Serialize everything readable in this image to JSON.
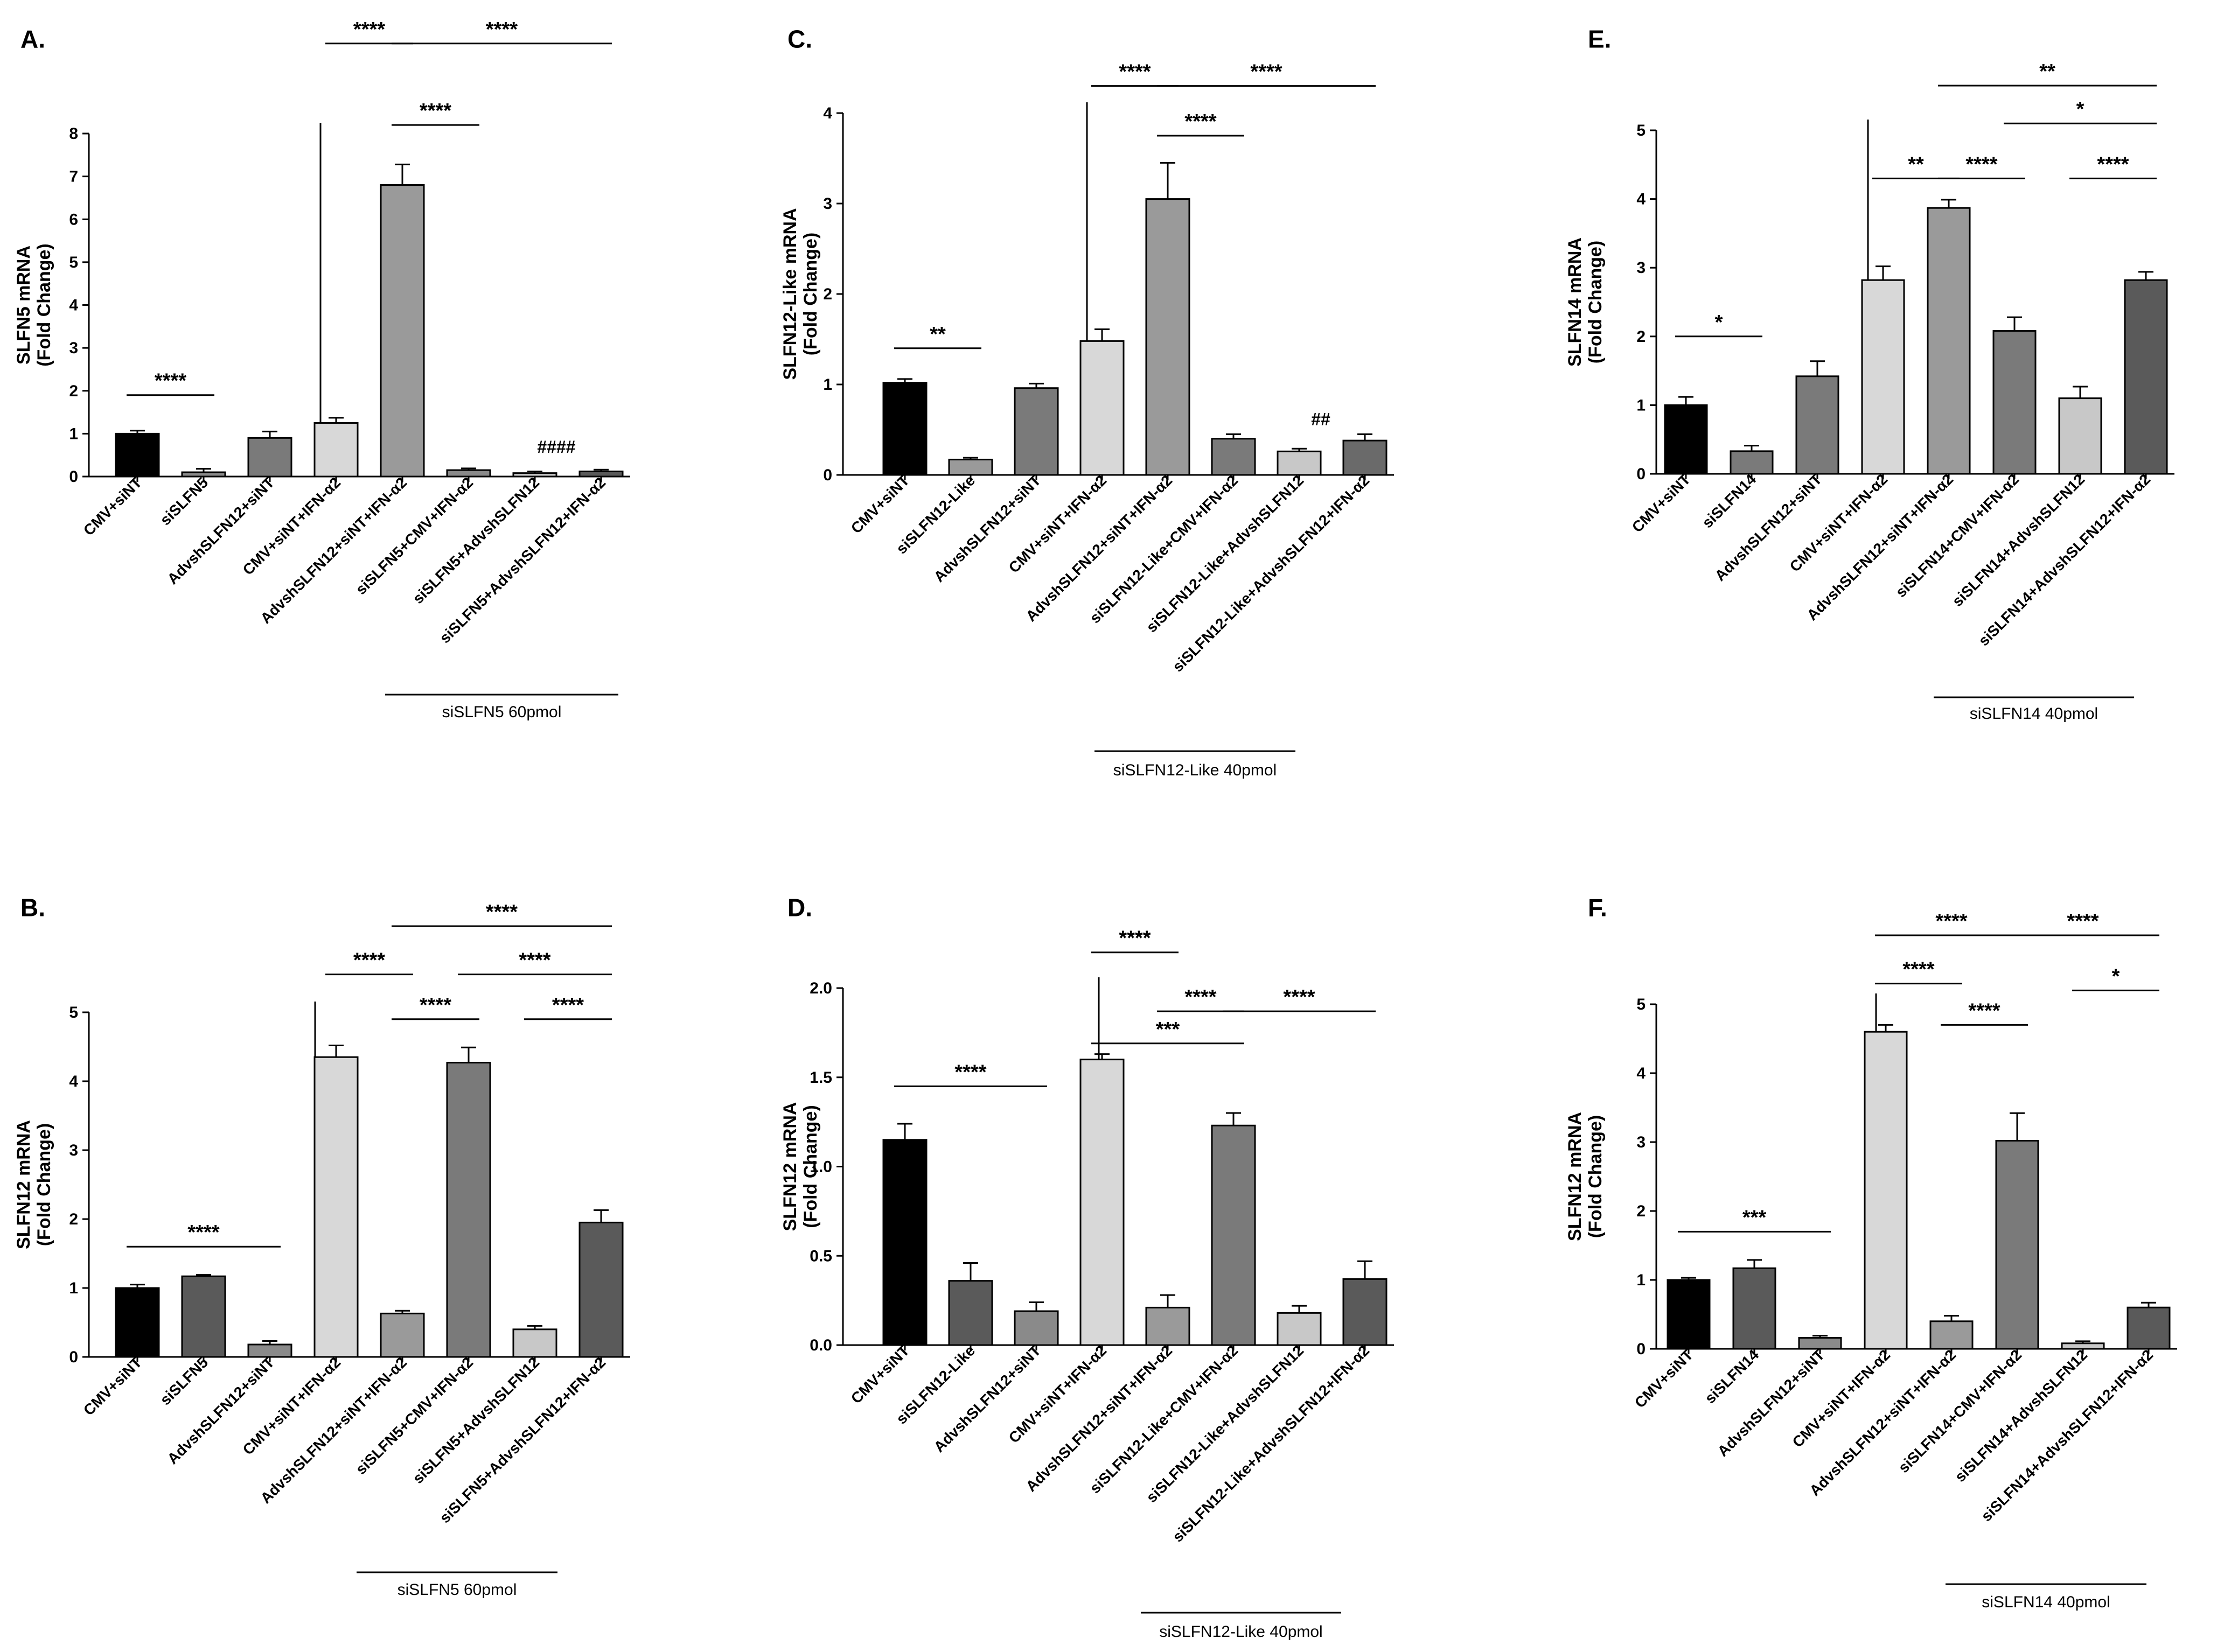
{
  "chart_data": [
    {
      "id": "A",
      "panel_label": "A.",
      "type": "bar",
      "ylabel_line1": "SLFN5 mRNA",
      "ylabel_line2": "(Fold Change)",
      "ylim": [
        0,
        8
      ],
      "yticks": [
        "0",
        "1",
        "2",
        "3",
        "4",
        "5",
        "6",
        "7",
        "8"
      ],
      "categories": [
        "CMV+siNT",
        "siSLFN5",
        "AdvshSLFN12+siNT",
        "CMV+siNT+IFN-α2",
        "AdvshSLFN12+siNT+IFN-α2",
        "siSLFN5+CMV+IFN-α2",
        "siSLFN5+AdvshSLFN12",
        "siSLFN5+AdvshSLFN12+IFN-α2"
      ],
      "values": [
        1.0,
        0.1,
        0.9,
        1.25,
        6.8,
        0.15,
        0.08,
        0.12
      ],
      "errors": [
        0.07,
        0.08,
        0.15,
        0.12,
        0.48,
        0.04,
        0.04,
        0.04
      ],
      "colors": [
        "#000000",
        "#8a8a8a",
        "#7a7a7a",
        "#d8d8d8",
        "#9a9a9a",
        "#8a8a8a",
        "#c8c8c8",
        "#5a5a5a"
      ],
      "divider_after": 3,
      "group_label": "siSLFN5 60pmol",
      "significance": [
        {
          "from": 0,
          "to": 1,
          "y": 1.9,
          "text": "****"
        },
        {
          "from": 3,
          "to": 4,
          "y": 10.1,
          "text": "****"
        },
        {
          "from": 4,
          "to": 5,
          "y": 8.2,
          "text": "****"
        },
        {
          "from": 4,
          "to": 7,
          "y": 10.1,
          "text": "****"
        }
      ],
      "annotations": [
        {
          "at": 6,
          "y": 0.55,
          "text": "####"
        }
      ]
    },
    {
      "id": "B",
      "panel_label": "B.",
      "type": "bar",
      "ylabel_line1": "SLFN12 mRNA",
      "ylabel_line2": "(Fold Change)",
      "ylim": [
        0,
        5
      ],
      "yticks": [
        "0",
        "1",
        "2",
        "3",
        "4",
        "5"
      ],
      "categories": [
        "CMV+siNT",
        "siSLFN5",
        "AdvshSLFN12+siNT",
        "CMV+siNT+IFN-α2",
        "AdvshSLFN12+siNT+IFN-α2",
        "siSLFN5+CMV+IFN-α2",
        "siSLFN5+AdvshSLFN12",
        "siSLFN5+AdvshSLFN12+IFN-α2"
      ],
      "values": [
        1.0,
        1.17,
        0.18,
        4.35,
        0.63,
        4.27,
        0.4,
        1.95
      ],
      "errors": [
        0.05,
        0.02,
        0.05,
        0.17,
        0.04,
        0.22,
        0.05,
        0.18
      ],
      "colors": [
        "#000000",
        "#5a5a5a",
        "#8a8a8a",
        "#d8d8d8",
        "#9a9a9a",
        "#7a7a7a",
        "#c8c8c8",
        "#5a5a5a"
      ],
      "divider_after": 3,
      "group_label": "siSLFN5 60pmol",
      "significance": [
        {
          "from": 0,
          "to": 2,
          "y": 1.6,
          "text": "****"
        },
        {
          "from": 3,
          "to": 4,
          "y": 5.55,
          "text": "****"
        },
        {
          "from": 4,
          "to": 5,
          "y": 4.9,
          "text": "****"
        },
        {
          "from": 4,
          "to": 7,
          "y": 6.25,
          "text": "****"
        },
        {
          "from": 5,
          "to": 7,
          "y": 5.55,
          "text": "****"
        },
        {
          "from": 6,
          "to": 7,
          "y": 4.9,
          "text": "****"
        }
      ],
      "annotations": []
    },
    {
      "id": "C",
      "panel_label": "C.",
      "type": "bar",
      "ylabel_line1": "SLFN12-Like mRNA",
      "ylabel_line2": "(Fold Change)",
      "ylim": [
        0,
        4
      ],
      "yticks": [
        "0",
        "1",
        "2",
        "3",
        "4"
      ],
      "categories": [
        "CMV+siNT",
        "siSLFN12-Like",
        "AdvshSLFN12+siNT",
        "CMV+siNT+IFN-α2",
        "AdvshSLFN12+siNT+IFN-α2",
        "siSLFN12-Like+CMV+IFN-α2",
        "siSLFN12-Like+AdvshSLFN12",
        "siSLFN12-Like+AdvshSLFN12+IFN-α2"
      ],
      "values": [
        1.02,
        0.17,
        0.96,
        1.48,
        3.05,
        0.4,
        0.26,
        0.38
      ],
      "errors": [
        0.04,
        0.02,
        0.05,
        0.13,
        0.4,
        0.05,
        0.03,
        0.07
      ],
      "colors": [
        "#000000",
        "#9a9a9a",
        "#7a7a7a",
        "#d8d8d8",
        "#9a9a9a",
        "#7a7a7a",
        "#c8c8c8",
        "#6a6a6a"
      ],
      "divider_after": 3,
      "group_label": "siSLFN12-Like 40pmol",
      "significance": [
        {
          "from": 0,
          "to": 1,
          "y": 1.4,
          "text": "**"
        },
        {
          "from": 3,
          "to": 4,
          "y": 4.3,
          "text": "****"
        },
        {
          "from": 4,
          "to": 5,
          "y": 3.75,
          "text": "****"
        },
        {
          "from": 4,
          "to": 7,
          "y": 4.3,
          "text": "****"
        }
      ],
      "annotations": [
        {
          "at": 6,
          "y": 0.55,
          "text": "##"
        }
      ]
    },
    {
      "id": "D",
      "panel_label": "D.",
      "type": "bar",
      "ylabel_line1": "SLFN12 mRNA",
      "ylabel_line2": "(Fold Change)",
      "ylim": [
        0,
        2
      ],
      "yticks": [
        "0.0",
        "0.5",
        "1.0",
        "1.5",
        "2.0"
      ],
      "categories": [
        "CMV+siNT",
        "siSLFN12-Like",
        "AdvshSLFN12+siNT",
        "CMV+siNT+IFN-α2",
        "AdvshSLFN12+siNT+IFN-α2",
        "siSLFN12-Like+CMV+IFN-α2",
        "siSLFN12-Like+AdvshSLFN12",
        "siSLFN12-Like+AdvshSLFN12+IFN-α2"
      ],
      "values": [
        1.15,
        0.36,
        0.19,
        1.6,
        0.21,
        1.23,
        0.18,
        0.37
      ],
      "errors": [
        0.09,
        0.1,
        0.05,
        0.03,
        0.07,
        0.07,
        0.04,
        0.1
      ],
      "colors": [
        "#000000",
        "#5a5a5a",
        "#8a8a8a",
        "#d8d8d8",
        "#9a9a9a",
        "#7a7a7a",
        "#c8c8c8",
        "#5a5a5a"
      ],
      "divider_after": 3,
      "group_label": "siSLFN12-Like 40pmol",
      "significance": [
        {
          "from": 0,
          "to": 2,
          "y": 1.45,
          "text": "****"
        },
        {
          "from": 3,
          "to": 4,
          "y": 2.2,
          "text": "****"
        },
        {
          "from": 3,
          "to": 5,
          "y": 1.69,
          "text": "***"
        },
        {
          "from": 4,
          "to": 5,
          "y": 1.87,
          "text": "****"
        },
        {
          "from": 5,
          "to": 7,
          "y": 1.87,
          "text": "****"
        }
      ],
      "annotations": []
    },
    {
      "id": "E",
      "panel_label": "E.",
      "type": "bar",
      "ylabel_line1": "SLFN14 mRNA",
      "ylabel_line2": "(Fold Change)",
      "ylim": [
        0,
        5
      ],
      "yticks": [
        "0",
        "1",
        "2",
        "3",
        "4",
        "5"
      ],
      "categories": [
        "CMV+siNT",
        "siSLFN14",
        "AdvshSLFN12+siNT",
        "CMV+siNT+IFN-α2",
        "AdvshSLFN12+siNT+IFN-α2",
        "siSLFN14+CMV+IFN-α2",
        "siSLFN14+AdvshSLFN12",
        "siSLFN14+AdvshSLFN12+IFN-α2"
      ],
      "values": [
        1.0,
        0.33,
        1.42,
        2.82,
        3.87,
        2.08,
        1.1,
        2.82
      ],
      "errors": [
        0.12,
        0.08,
        0.22,
        0.2,
        0.12,
        0.2,
        0.17,
        0.12
      ],
      "colors": [
        "#000000",
        "#7a7a7a",
        "#7a7a7a",
        "#d8d8d8",
        "#9a9a9a",
        "#7a7a7a",
        "#c8c8c8",
        "#5a5a5a"
      ],
      "divider_after": 3,
      "group_label": "siSLFN14 40pmol",
      "significance": [
        {
          "from": 0,
          "to": 1,
          "y": 2.0,
          "text": "*"
        },
        {
          "from": 3,
          "to": 4,
          "y": 4.3,
          "text": "**"
        },
        {
          "from": 4,
          "to": 5,
          "y": 4.3,
          "text": "****"
        },
        {
          "from": 4,
          "to": 7,
          "y": 5.65,
          "text": "**"
        },
        {
          "from": 5,
          "to": 7,
          "y": 5.1,
          "text": "*"
        },
        {
          "from": 6,
          "to": 7,
          "y": 4.3,
          "text": "****"
        }
      ],
      "annotations": []
    },
    {
      "id": "F",
      "panel_label": "F.",
      "type": "bar",
      "ylabel_line1": "SLFN12 mRNA",
      "ylabel_line2": "(Fold Change)",
      "ylim": [
        0,
        5
      ],
      "yticks": [
        "0",
        "1",
        "2",
        "3",
        "4",
        "5"
      ],
      "categories": [
        "CMV+siNT",
        "siSLFN14",
        "AdvshSLFN12+siNT",
        "CMV+siNT+IFN-α2",
        "AdvshSLFN12+siNT+IFN-α2",
        "siSLFN14+CMV+IFN-α2",
        "siSLFN14+AdvshSLFN12",
        "siSLFN14+AdvshSLFN12+IFN-α2"
      ],
      "values": [
        1.0,
        1.17,
        0.16,
        4.6,
        0.4,
        3.02,
        0.08,
        0.6
      ],
      "errors": [
        0.03,
        0.12,
        0.03,
        0.1,
        0.08,
        0.4,
        0.03,
        0.07
      ],
      "colors": [
        "#000000",
        "#5a5a5a",
        "#8a8a8a",
        "#d8d8d8",
        "#9a9a9a",
        "#7a7a7a",
        "#c8c8c8",
        "#5a5a5a"
      ],
      "divider_after": 3,
      "group_label": "siSLFN14 40pmol",
      "significance": [
        {
          "from": 0,
          "to": 2,
          "y": 1.7,
          "text": "***"
        },
        {
          "from": 3,
          "to": 4,
          "y": 5.3,
          "text": "****"
        },
        {
          "from": 3,
          "to": 5,
          "y": 6.0,
          "text": "****"
        },
        {
          "from": 4,
          "to": 5,
          "y": 4.7,
          "text": "****"
        },
        {
          "from": 5,
          "to": 7,
          "y": 6.0,
          "text": "****"
        },
        {
          "from": 6,
          "to": 7,
          "y": 5.2,
          "text": "*"
        }
      ],
      "annotations": []
    }
  ]
}
